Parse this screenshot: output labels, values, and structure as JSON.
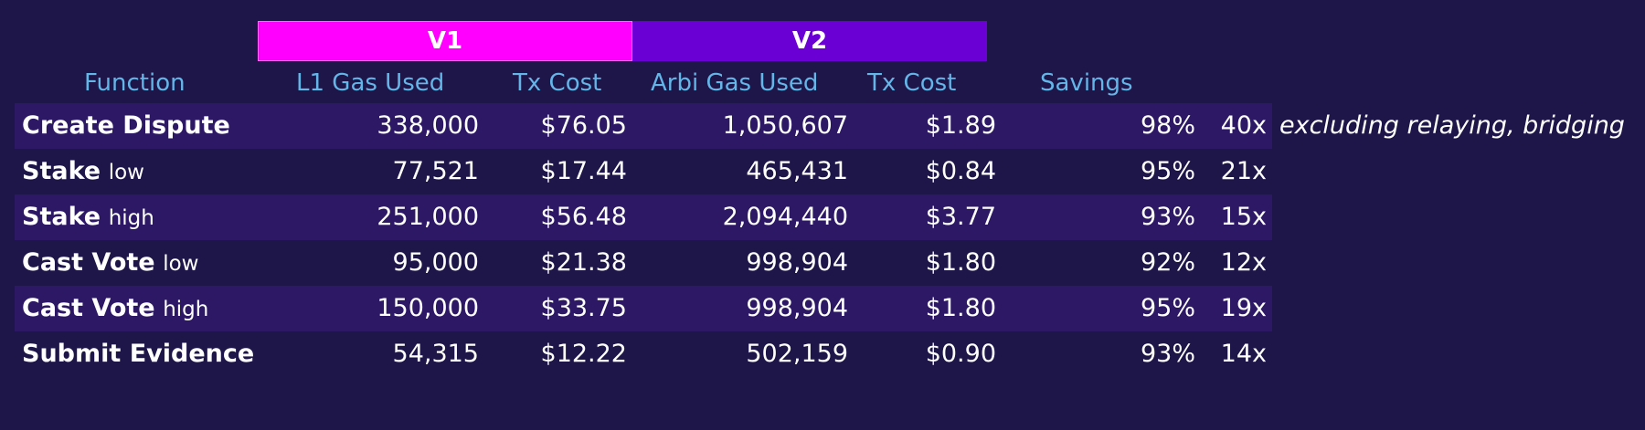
{
  "groups": {
    "v1": "V1",
    "v2": "V2"
  },
  "headers": {
    "function": "Function",
    "l1_gas": "L1 Gas Used",
    "tx_cost_v1": "Tx Cost",
    "arbi_gas": "Arbi Gas Used",
    "tx_cost_v2": "Tx Cost",
    "savings": "Savings"
  },
  "rows": [
    {
      "fn": "Create Dispute",
      "suffix": "",
      "l1_gas": "338,000",
      "cost_v1": "$76.05",
      "arbi_gas": "1,050,607",
      "cost_v2": "$1.89",
      "savings": "98%",
      "factor": "40x"
    },
    {
      "fn": "Stake",
      "suffix": "low",
      "l1_gas": "77,521",
      "cost_v1": "$17.44",
      "arbi_gas": "465,431",
      "cost_v2": "$0.84",
      "savings": "95%",
      "factor": "21x"
    },
    {
      "fn": "Stake",
      "suffix": "high",
      "l1_gas": "251,000",
      "cost_v1": "$56.48",
      "arbi_gas": "2,094,440",
      "cost_v2": "$3.77",
      "savings": "93%",
      "factor": "15x"
    },
    {
      "fn": "Cast Vote",
      "suffix": "low",
      "l1_gas": "95,000",
      "cost_v1": "$21.38",
      "arbi_gas": "998,904",
      "cost_v2": "$1.80",
      "savings": "92%",
      "factor": "12x"
    },
    {
      "fn": "Cast Vote",
      "suffix": "high",
      "l1_gas": "150,000",
      "cost_v1": "$33.75",
      "arbi_gas": "998,904",
      "cost_v2": "$1.80",
      "savings": "95%",
      "factor": "19x"
    },
    {
      "fn": "Submit Evidence",
      "suffix": "",
      "l1_gas": "54,315",
      "cost_v1": "$12.22",
      "arbi_gas": "502,159",
      "cost_v2": "$0.90",
      "savings": "93%",
      "factor": "14x"
    }
  ],
  "note": "excluding relaying, bridging",
  "colors": {
    "background": "#1e1548",
    "row_shade": "#2d1865",
    "v1_band": "#ff00ff",
    "v2_band": "#6a00d4",
    "header_text": "#64b5e8",
    "body_text": "#ffffff"
  }
}
